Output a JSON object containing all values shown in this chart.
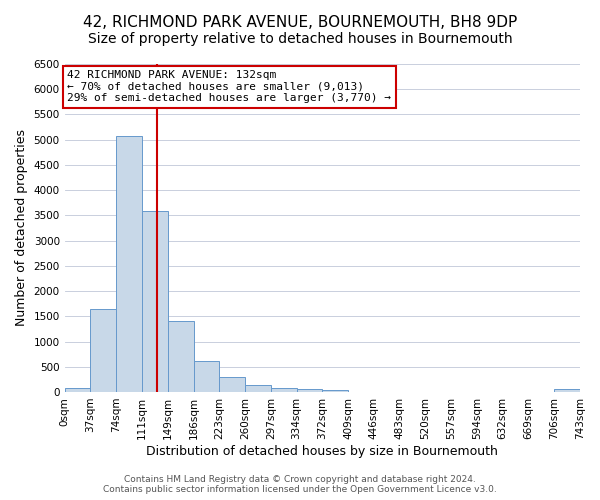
{
  "title": "42, RICHMOND PARK AVENUE, BOURNEMOUTH, BH8 9DP",
  "subtitle": "Size of property relative to detached houses in Bournemouth",
  "xlabel": "Distribution of detached houses by size in Bournemouth",
  "ylabel": "Number of detached properties",
  "bin_left_edges": [
    0,
    37,
    74,
    111,
    148,
    185,
    222,
    259,
    296,
    333,
    370,
    407,
    444,
    481,
    518,
    555,
    592,
    629,
    666,
    703
  ],
  "bin_counts": [
    75,
    1650,
    5070,
    3580,
    1400,
    610,
    300,
    135,
    80,
    60,
    40,
    0,
    0,
    0,
    0,
    0,
    0,
    0,
    0,
    50
  ],
  "bin_width": 37,
  "bar_color": "#c8d8e8",
  "bar_edge_color": "#6699cc",
  "vline_x": 132,
  "vline_color": "#cc0000",
  "annotation_line1": "42 RICHMOND PARK AVENUE: 132sqm",
  "annotation_line2": "← 70% of detached houses are smaller (9,013)",
  "annotation_line3": "29% of semi-detached houses are larger (3,770) →",
  "annotation_box_color": "#ffffff",
  "annotation_box_edge_color": "#cc0000",
  "ylim": [
    0,
    6500
  ],
  "yticks": [
    0,
    500,
    1000,
    1500,
    2000,
    2500,
    3000,
    3500,
    4000,
    4500,
    5000,
    5500,
    6000,
    6500
  ],
  "xtick_positions": [
    0,
    37,
    74,
    111,
    148,
    185,
    222,
    259,
    296,
    333,
    370,
    407,
    444,
    481,
    518,
    555,
    592,
    629,
    666,
    703,
    740
  ],
  "xtick_labels": [
    "0sqm",
    "37sqm",
    "74sqm",
    "111sqm",
    "149sqm",
    "186sqm",
    "223sqm",
    "260sqm",
    "297sqm",
    "334sqm",
    "372sqm",
    "409sqm",
    "446sqm",
    "483sqm",
    "520sqm",
    "557sqm",
    "594sqm",
    "632sqm",
    "669sqm",
    "706sqm",
    "743sqm"
  ],
  "xlim": [
    0,
    740
  ],
  "footer_line1": "Contains HM Land Registry data © Crown copyright and database right 2024.",
  "footer_line2": "Contains public sector information licensed under the Open Government Licence v3.0.",
  "background_color": "#ffffff",
  "grid_color": "#c0c8d8",
  "title_fontsize": 11,
  "subtitle_fontsize": 10,
  "xlabel_fontsize": 9,
  "ylabel_fontsize": 9,
  "tick_fontsize": 7.5,
  "footer_fontsize": 6.5,
  "annotation_fontsize": 8
}
